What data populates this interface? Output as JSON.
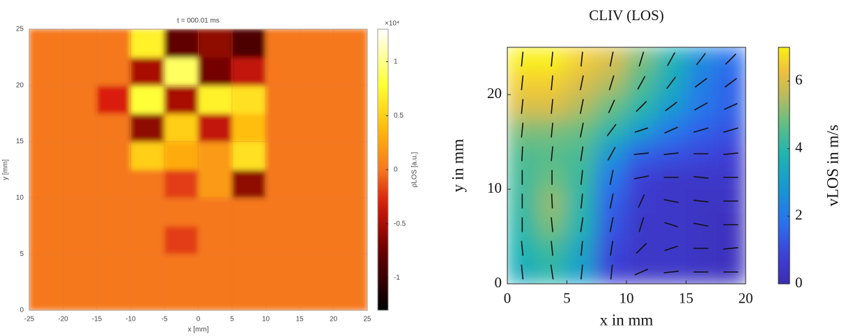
{
  "chart_data": [
    {
      "type": "heatmap",
      "title": "t = 000.01 ms",
      "xlabel": "x [mm]",
      "ylabel": "y [mm]",
      "xlim": [
        -25,
        25
      ],
      "ylim": [
        0,
        25
      ],
      "xticks": [
        -25,
        -20,
        -15,
        -10,
        -5,
        0,
        5,
        10,
        15,
        20,
        25
      ],
      "yticks": [
        0,
        5,
        10,
        15,
        20,
        25
      ],
      "grid": true,
      "colormap": "hot",
      "clim": [
        -1.3,
        1.3
      ],
      "cticks": [
        -1,
        -0.5,
        0,
        0.5,
        1
      ],
      "cmultiplier": "×10⁴",
      "clabel": "ρ̇LOS [a.u.]",
      "x": [
        -22.5,
        -17.5,
        -12.5,
        -7.5,
        -2.5,
        2.5,
        7.5,
        12.5,
        17.5,
        22.5
      ],
      "y": [
        1.25,
        3.75,
        6.25,
        8.75,
        11.25,
        13.75,
        16.25,
        18.75,
        21.25,
        23.75
      ],
      "z": [
        [
          0,
          0,
          0,
          0,
          0,
          0,
          0,
          0,
          0,
          0
        ],
        [
          0,
          0,
          0,
          0,
          0,
          0,
          0,
          0,
          0,
          0
        ],
        [
          0,
          0,
          0,
          0,
          -0.2,
          0,
          0,
          0,
          0,
          0
        ],
        [
          0,
          0,
          0,
          0,
          0,
          0,
          0,
          0,
          0,
          0
        ],
        [
          0,
          0,
          0,
          0,
          -0.2,
          0.2,
          -0.6,
          0,
          0,
          0
        ],
        [
          0,
          0,
          0,
          0.5,
          0.3,
          0.2,
          0.6,
          0,
          0,
          0
        ],
        [
          0,
          0,
          0,
          -0.6,
          0.5,
          -0.4,
          0.4,
          0,
          0,
          0
        ],
        [
          0,
          0,
          -0.3,
          0.8,
          -0.5,
          0.7,
          0.6,
          0,
          0,
          0
        ],
        [
          0,
          0,
          0,
          -0.5,
          0.9,
          -0.7,
          -0.4,
          0,
          0,
          0
        ],
        [
          0,
          0,
          0,
          0.7,
          -0.8,
          -0.6,
          -0.9,
          0,
          0,
          0
        ]
      ]
    },
    {
      "type": "heatmap",
      "title": "CLIV (LOS)",
      "xlabel": "x in mm",
      "ylabel": "y in mm",
      "xlim": [
        0,
        20
      ],
      "ylim": [
        0,
        25
      ],
      "xticks": [
        0,
        5,
        10,
        15,
        20
      ],
      "yticks": [
        0,
        10,
        20
      ],
      "grid": false,
      "colormap": "parula",
      "clim": [
        0,
        7
      ],
      "cticks": [
        0,
        2,
        4,
        6
      ],
      "clabel": "vLOS in m/s",
      "x": [
        1.25,
        3.75,
        6.25,
        8.75,
        11.25,
        13.75,
        16.25,
        18.75
      ],
      "y": [
        1.25,
        3.75,
        6.25,
        8.75,
        11.25,
        13.75,
        16.25,
        18.75,
        21.25,
        23.75
      ],
      "z": [
        [
          3.5,
          4,
          3,
          0.8,
          0.5,
          0.5,
          0.4,
          0.3
        ],
        [
          3.8,
          4.3,
          3.3,
          1,
          0.5,
          0.5,
          0.4,
          0.3
        ],
        [
          4,
          5,
          3.8,
          1.3,
          0.5,
          0.5,
          0.4,
          0.3
        ],
        [
          4.2,
          5.2,
          4,
          1.5,
          0.6,
          0.5,
          0.4,
          0.4
        ],
        [
          4.3,
          4.8,
          4.2,
          2,
          0.8,
          0.5,
          0.5,
          0.5
        ],
        [
          4.5,
          4.6,
          4.4,
          2.8,
          1.5,
          1.2,
          1,
          0.8
        ],
        [
          5,
          5,
          4.8,
          4,
          3,
          2,
          1.5,
          1.2
        ],
        [
          6,
          6,
          5.5,
          4.8,
          4,
          3,
          2,
          1.5
        ],
        [
          6.5,
          6.5,
          6,
          5.5,
          4.5,
          3.5,
          2.2,
          1.5
        ],
        [
          7,
          7,
          6.5,
          6,
          5,
          3.8,
          2.5,
          1.8
        ]
      ],
      "quiver": {
        "u": [
          [
            -0.1,
            -0.15,
            0.1,
            0.1,
            0.9,
            1,
            1,
            1
          ],
          [
            -0.1,
            -0.1,
            0.1,
            0.15,
            0.7,
            0.9,
            1,
            1
          ],
          [
            0,
            -0.1,
            0.15,
            0.2,
            0.3,
            0.9,
            1,
            1
          ],
          [
            0,
            -0.05,
            0.1,
            0.2,
            0.4,
            1,
            1,
            1
          ],
          [
            0,
            0,
            0.1,
            0.2,
            1,
            1,
            1,
            1
          ],
          [
            0.05,
            0.1,
            0.15,
            0.5,
            1,
            1,
            1,
            1
          ],
          [
            0.1,
            0.1,
            0.2,
            0.6,
            0.9,
            0.9,
            1,
            1
          ],
          [
            0.1,
            0.1,
            0.2,
            0.4,
            0.7,
            0.8,
            0.9,
            0.9
          ],
          [
            0.1,
            0.1,
            0.2,
            0.3,
            0.5,
            0.6,
            0.8,
            0.8
          ],
          [
            0.1,
            0.1,
            0.1,
            0.2,
            0.3,
            0.5,
            0.6,
            0.7
          ]
        ],
        "v": [
          [
            1,
            1,
            1,
            1,
            0.4,
            0.1,
            0,
            0
          ],
          [
            1,
            1,
            1,
            1,
            0.7,
            0.3,
            0,
            0.1
          ],
          [
            1,
            1,
            1,
            1,
            1,
            -0.3,
            -0.2,
            0
          ],
          [
            1,
            1,
            1,
            1,
            0.9,
            -0.2,
            -0.1,
            0
          ],
          [
            1,
            1,
            1,
            1,
            0.2,
            0,
            -0.1,
            0
          ],
          [
            1,
            1,
            1,
            0.9,
            0.1,
            0.1,
            0,
            0.1
          ],
          [
            1,
            1,
            1,
            0.8,
            0.3,
            0.4,
            0.3,
            0.3
          ],
          [
            1,
            1,
            1,
            0.9,
            0.7,
            0.6,
            0.5,
            0.4
          ],
          [
            1,
            1,
            1,
            1,
            0.9,
            0.8,
            0.6,
            0.6
          ],
          [
            1,
            1,
            1,
            1,
            1,
            0.9,
            0.8,
            0.7
          ]
        ]
      }
    }
  ]
}
